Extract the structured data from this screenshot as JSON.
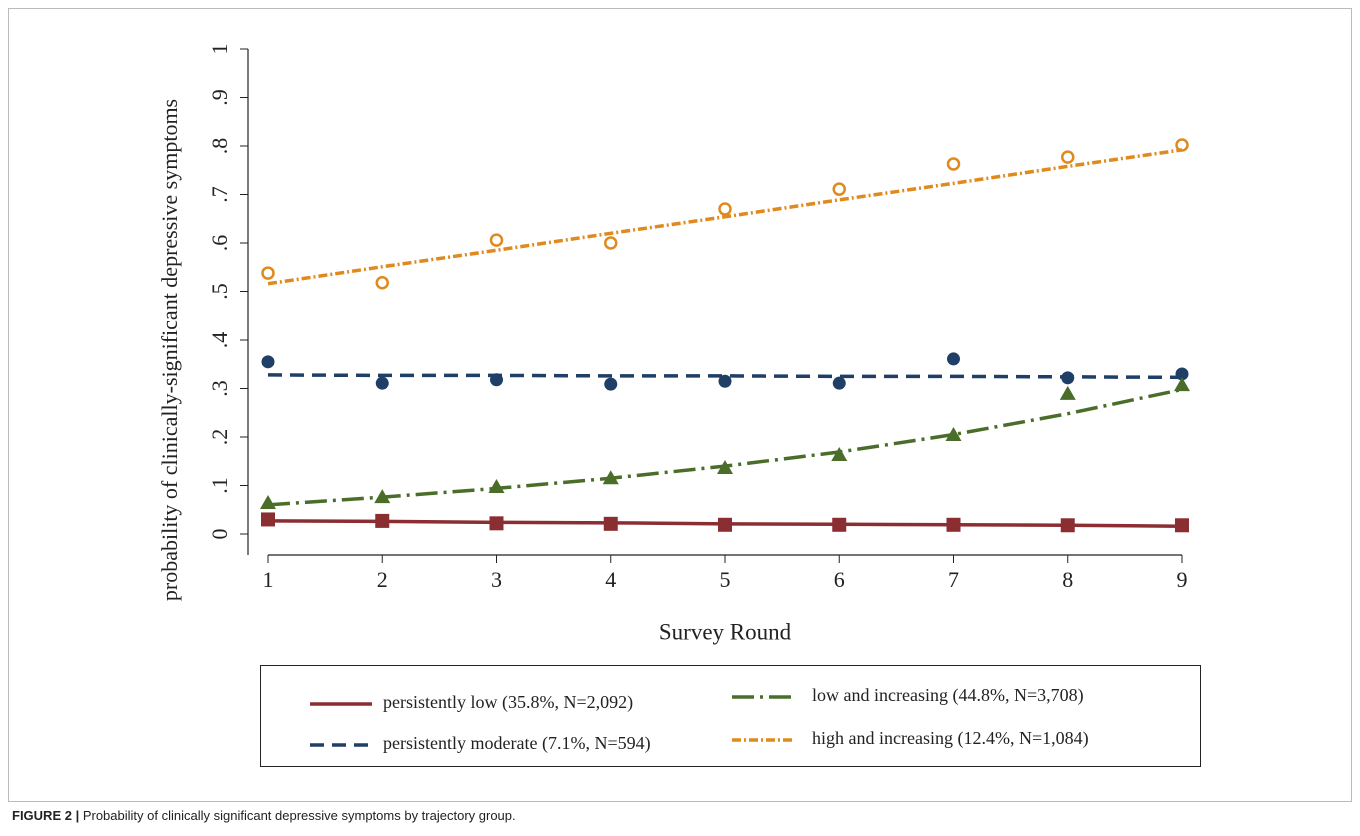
{
  "chart_data": {
    "type": "line",
    "y_label": "probability of clinically-significant depressive symptoms",
    "x_label": "Survey Round",
    "x": [
      1,
      2,
      3,
      4,
      5,
      6,
      7,
      8,
      9
    ],
    "xlim": [
      1,
      9
    ],
    "xticks": [
      1,
      2,
      3,
      4,
      5,
      6,
      7,
      8,
      9
    ],
    "ylim": [
      0,
      1
    ],
    "yticks": [
      0,
      {
        "value": 0.1,
        "label": ".1"
      },
      {
        "value": 0.2,
        "label": ".2"
      },
      {
        "value": 0.3,
        "label": ".3"
      },
      {
        "value": 0.4,
        "label": ".4"
      },
      {
        "value": 0.5,
        "label": ".5"
      },
      {
        "value": 0.6,
        "label": ".6"
      },
      {
        "value": 0.7,
        "label": ".7"
      },
      {
        "value": 0.8,
        "label": ".8"
      },
      {
        "value": 0.9,
        "label": ".9"
      },
      1
    ],
    "grid": false,
    "series": [
      {
        "name": "persistently low (35.8%, N=2,092)",
        "color": "#8b2e32",
        "line_style": "solid",
        "marker": "square",
        "values": [
          0.027,
          0.026,
          0.024,
          0.023,
          0.021,
          0.02,
          0.019,
          0.018,
          0.016
        ],
        "observed": [
          0.03,
          0.027,
          0.022,
          0.021,
          0.019,
          0.019,
          0.019,
          0.018,
          0.018
        ]
      },
      {
        "name": "persistently moderate (7.1%, N=594)",
        "color": "#1f3f66",
        "line_style": "dash",
        "marker": "circle",
        "values": [
          0.328,
          0.327,
          0.327,
          0.326,
          0.326,
          0.325,
          0.325,
          0.324,
          0.323
        ],
        "observed": [
          0.355,
          0.311,
          0.318,
          0.309,
          0.315,
          0.311,
          0.361,
          0.322,
          0.33
        ]
      },
      {
        "name": "low and increasing (44.8%, N=3,708)",
        "color": "#4a6e2a",
        "line_style": "dash-dot",
        "marker": "triangle",
        "values": [
          0.06,
          0.076,
          0.094,
          0.115,
          0.14,
          0.169,
          0.205,
          0.248,
          0.298
        ],
        "observed": [
          0.064,
          0.076,
          0.097,
          0.115,
          0.136,
          0.163,
          0.204,
          0.289,
          0.307
        ]
      },
      {
        "name": "high and increasing (12.4%, N=1,084)",
        "color": "#e08a1e",
        "line_style": "dot",
        "marker": "hollow-circle",
        "values": [
          0.516,
          0.551,
          0.585,
          0.62,
          0.654,
          0.689,
          0.723,
          0.758,
          0.792
        ],
        "observed": [
          0.538,
          0.518,
          0.606,
          0.6,
          0.67,
          0.711,
          0.763,
          0.777,
          0.802
        ]
      }
    ]
  },
  "caption": {
    "label": "FIGURE 2 |",
    "text": "Probability of clinically significant depressive symptoms by trajectory group."
  }
}
